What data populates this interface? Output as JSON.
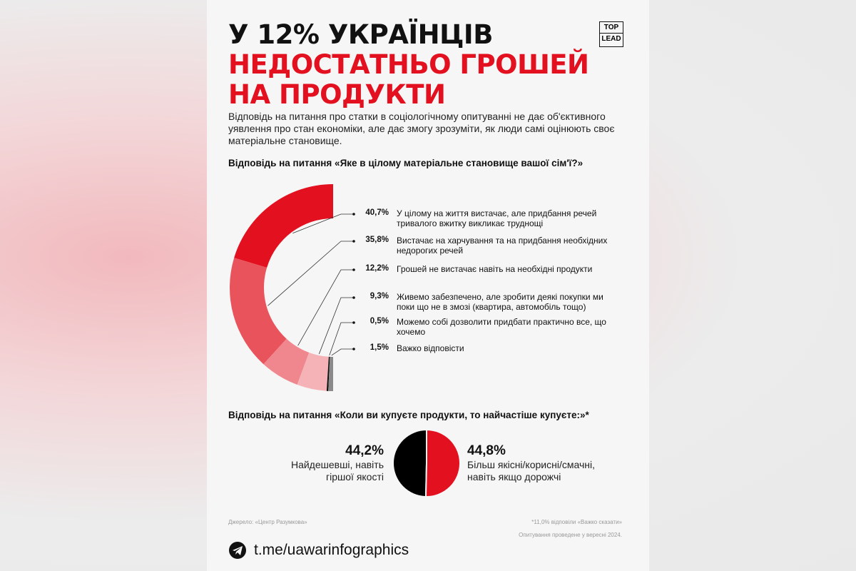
{
  "header": {
    "title_lines": [
      "У 12% УКРАЇНЦІВ",
      "НЕДОСТАТНЬО ГРОШЕЙ",
      "НА ПРОДУКТИ"
    ],
    "logo_lines": [
      "TOP",
      "LEAD"
    ],
    "intro": "Відповідь на питання про статки в соціологічному опитуванні не дає об'єктивного  уявлення про стан економіки, але дає змогу зрозуміти, як люди самі оцінюють своє матеріальне становище."
  },
  "chart_data": [
    {
      "type": "donut",
      "title": "Відповідь на питання «Яке в цілому матеріальне становище вашої сім'ї?»",
      "categories": [
        "У цілому на життя вистачає, але придбання речей тривалого вжитку викликає труднощі",
        "Вистачає на харчування та на придбання необхідних недорогих речей",
        "Грошей не вистачає навіть на необхідні продукти",
        "Живемо забезпечено, але зробити деякі покупки ми поки що не в змозі (квартира, автомобіль тощо)",
        "Можемо собі дозволити придбати практично все, що хочемо",
        "Важко відповісти"
      ],
      "values": [
        40.7,
        35.8,
        12.2,
        9.3,
        0.5,
        1.5
      ],
      "value_labels": [
        "40,7%",
        "35,8%",
        "12,2%",
        "9,3%",
        "0,5%",
        "1,5%"
      ],
      "colors": [
        "#e3101f",
        "#e8535c",
        "#f0878e",
        "#f5b3b7",
        "#111111",
        "#8a8a8a"
      ]
    },
    {
      "type": "pie",
      "title": "Відповідь на питання «Коли ви купуєте продукти, то найчастіше купуєте:»*",
      "categories": [
        "Найдешевші, навіть гіршої якості",
        "Більш якісні/корисні/смачні, навіть якщо дорожчі"
      ],
      "values": [
        44.2,
        44.8
      ],
      "value_labels": [
        "44,2%",
        "44,8%"
      ],
      "colors": [
        "#000000",
        "#e3101f"
      ]
    }
  ],
  "footer": {
    "source": "Джерело: «Центр Разумкова»",
    "note": "*11,0% відповіли «Важко сказати»",
    "date": "Опитування проведене у вересні 2024.",
    "link": "t.me/uawarinfographics"
  }
}
